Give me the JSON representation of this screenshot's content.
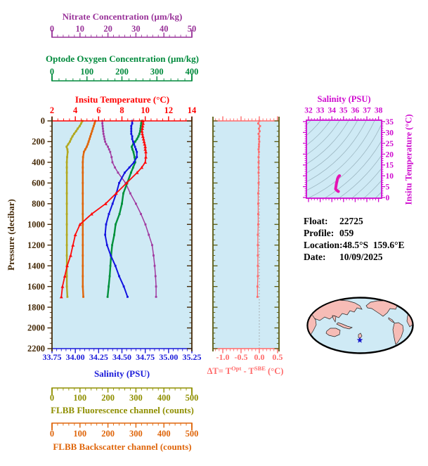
{
  "axes": {
    "pressure": {
      "title": "Pressure (decibar)",
      "color": "#452a08",
      "min": 0,
      "max": 2200,
      "major": 200,
      "minor": 50,
      "ticks": [
        "0",
        "200",
        "400",
        "600",
        "800",
        "1000",
        "1200",
        "1400",
        "1600",
        "1800",
        "2000",
        "2200"
      ]
    },
    "nitrate": {
      "title": "Nitrate Concentration (µm/kg)",
      "color": "#993399",
      "min": 0,
      "max": 50,
      "major": 10,
      "minor": 2,
      "ticks": [
        "0",
        "10",
        "20",
        "30",
        "40",
        "50"
      ]
    },
    "oxygen": {
      "title": "Optode Oxygen Concentration (µm/kg)",
      "color": "#008a3c",
      "min": 0,
      "max": 400,
      "major": 100,
      "minor": 20,
      "ticks": [
        "0",
        "100",
        "200",
        "300",
        "400"
      ]
    },
    "temperature": {
      "title": "Insitu Temperature (°C)",
      "color": "#ff0000",
      "min": 2,
      "max": 14,
      "major": 2,
      "minor": 0.5,
      "ticks": [
        "2",
        "4",
        "6",
        "8",
        "10",
        "12",
        "14"
      ]
    },
    "salinity": {
      "title": "Salinity (PSU)",
      "color": "#1a1ad9",
      "min": 33.75,
      "max": 35.25,
      "major": 0.25,
      "minor": 0.05,
      "ticks": [
        "33.75",
        "34.00",
        "34.25",
        "34.50",
        "34.75",
        "35.00",
        "35.25"
      ]
    },
    "fluorescence": {
      "title": "FLBB Fluorescence channel (counts)",
      "color": "#8f8f00",
      "min": 0,
      "max": 500,
      "major": 100,
      "minor": 20,
      "ticks": [
        "0",
        "100",
        "200",
        "300",
        "400",
        "500"
      ]
    },
    "backscatter": {
      "title": "FLBB Backscatter channel (counts)",
      "color": "#df650a",
      "min": 0,
      "max": 500,
      "major": 100,
      "minor": 20,
      "ticks": [
        "0",
        "100",
        "200",
        "300",
        "400",
        "500"
      ]
    },
    "delta_t": {
      "title_parts": {
        "p1": "ΔT= T",
        "sup1": "Opt",
        "p2": " - T",
        "sup2": "SBE",
        "p3": " (°C)"
      },
      "color": "#ff6b6b",
      "frame_color": "#5a5a10",
      "zero_line_color": "#9a9a9a",
      "min": -1.27,
      "max": 0.54,
      "major": 0.5,
      "minor": 0.1,
      "ticks": [
        "-1.0",
        "-0.5",
        "0.0",
        "0.5"
      ]
    },
    "ts_salinity": {
      "title": "Salinity (PSU)",
      "color": "#cf0ccf",
      "min": 32,
      "max": 38,
      "major": 1,
      "minor": 0.25,
      "ticks": [
        "32",
        "33",
        "34",
        "35",
        "36",
        "37",
        "38"
      ]
    },
    "ts_temperature": {
      "title": "Insitu Temperature (°C)",
      "color": "#cf0ccf",
      "min": 0,
      "max": 35,
      "major": 5,
      "minor": 1,
      "ticks": [
        "0",
        "5",
        "10",
        "15",
        "20",
        "25",
        "30",
        "35"
      ]
    }
  },
  "info": {
    "rows": [
      {
        "label": "Float:",
        "value": "22725"
      },
      {
        "label": "Profile:",
        "value": "059"
      },
      {
        "label": "Location:",
        "value": "48.5°S  159.6°E"
      },
      {
        "label": "Date:",
        "value": "10/09/2025"
      }
    ]
  },
  "map": {
    "ocean_color": "#cfeaf5",
    "land_color": "#f6bcb6",
    "outline_color": "#000000",
    "star_color": "#1a1acc"
  },
  "plot_bg": "#cfeaf5",
  "chart_data": {
    "type": "line",
    "description": "Biogeochemical float vertical profiles vs pressure, plus ΔT panel and T-S inset with isopycnal contours",
    "pressure_dbar": [
      0,
      25,
      50,
      75,
      100,
      125,
      150,
      175,
      200,
      225,
      250,
      275,
      300,
      350,
      400,
      450,
      500,
      600,
      700,
      800,
      900,
      1000,
      1100,
      1200,
      1300,
      1400,
      1500,
      1600,
      1700
    ],
    "pressure_range": [
      0,
      2200
    ],
    "series": [
      {
        "name": "Insitu Temperature",
        "units": "°C",
        "color": "#ff0a0a",
        "marker": "triangle",
        "x_range": [
          2,
          14
        ],
        "values": [
          9.8,
          9.82,
          9.78,
          9.75,
          9.72,
          9.75,
          9.8,
          9.85,
          9.9,
          9.95,
          10.0,
          10.0,
          10.05,
          10.05,
          10.0,
          9.7,
          9.3,
          8.4,
          7.5,
          6.6,
          5.4,
          4.4,
          4.0,
          3.8,
          3.6,
          3.3,
          3.1,
          2.9,
          2.8
        ]
      },
      {
        "name": "Salinity",
        "units": "PSU",
        "color": "#1212e0",
        "marker": "square",
        "x_range": [
          33.75,
          35.25
        ],
        "values": [
          34.61,
          34.61,
          34.6,
          34.6,
          34.6,
          34.6,
          34.61,
          34.61,
          34.62,
          34.63,
          34.64,
          34.65,
          34.66,
          34.66,
          34.63,
          34.58,
          34.53,
          34.47,
          34.44,
          34.4,
          34.36,
          34.33,
          34.32,
          34.34,
          34.38,
          34.43,
          34.47,
          34.52,
          34.56
        ]
      },
      {
        "name": "Optode Oxygen Concentration",
        "units": "µm/kg",
        "color": "#00913c",
        "marker": "square",
        "x_range": [
          0,
          400
        ],
        "values": [
          256,
          255,
          254,
          253,
          252,
          250,
          247,
          243,
          238,
          232,
          228,
          230,
          233,
          236,
          238,
          232,
          226,
          215,
          204,
          200,
          193,
          182,
          178,
          172,
          169,
          167,
          165,
          162,
          159
        ]
      },
      {
        "name": "Nitrate Concentration",
        "units": "µm/kg",
        "color": "#a03aa0",
        "marker": "square",
        "x_range": [
          0,
          50
        ],
        "values": [
          18,
          18,
          18.1,
          18.2,
          18.3,
          18.4,
          18.6,
          18.8,
          19,
          19.4,
          20,
          20.4,
          20.8,
          21.3,
          21.6,
          22.5,
          23.6,
          26.3,
          28,
          30,
          31.8,
          33.4,
          34.6,
          35.8,
          36.3,
          36.7,
          37,
          37.2,
          37.2
        ]
      },
      {
        "name": "FLBB Fluorescence channel",
        "units": "counts",
        "color": "#b2a821",
        "marker": "square",
        "x_range": [
          0,
          500
        ],
        "values": [
          109,
          104,
          99,
          92,
          86,
          79,
          73,
          68,
          64,
          58,
          52,
          55,
          56,
          54,
          53,
          53,
          53,
          53,
          53,
          53,
          53,
          53,
          53,
          53,
          53,
          53,
          53,
          53,
          55
        ]
      },
      {
        "name": "FLBB Backscatter channel",
        "units": "counts",
        "color": "#df650a",
        "marker": "square",
        "x_range": [
          0,
          500
        ],
        "values": [
          155,
          152,
          149,
          146,
          143,
          140,
          137,
          134,
          131,
          128,
          124,
          119,
          114,
          111,
          110,
          110,
          110,
          110,
          110,
          110,
          110,
          110,
          110,
          110,
          110,
          110,
          110,
          110,
          112
        ]
      },
      {
        "name": "ΔT = T Opt − T SBE",
        "units": "°C",
        "color": "#ff6b6b",
        "marker": "square",
        "panel": "delta",
        "x_range": [
          -1.27,
          0.54
        ],
        "values": [
          0.0,
          -0.03,
          0.02,
          -0.01,
          0.01,
          -0.02,
          0.0,
          -0.01,
          0.0,
          -0.01,
          -0.01,
          -0.02,
          -0.01,
          -0.02,
          -0.02,
          -0.02,
          -0.02,
          -0.02,
          -0.03,
          -0.03,
          -0.03,
          -0.03,
          -0.04,
          -0.04,
          -0.04,
          -0.04,
          -0.04,
          -0.05,
          -0.05
        ]
      }
    ],
    "ts_plot": {
      "type": "scatter",
      "curve_color": "#e513b3",
      "contour_color": "#9db7c2",
      "salinity_range": [
        32,
        38
      ],
      "temperature_range": [
        0,
        35
      ],
      "note": "curve is Salinity vs Insitu Temperature from the series above, over isopycnal contours"
    }
  }
}
